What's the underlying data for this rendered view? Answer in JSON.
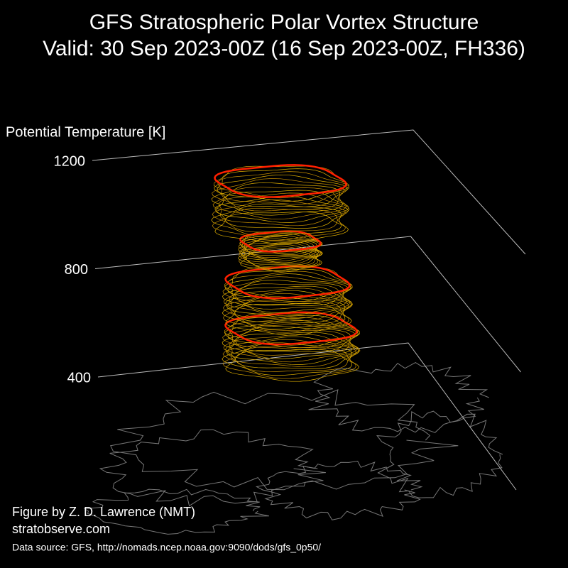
{
  "chart_data": {
    "type": "vortex3d",
    "title": "GFS Stratospheric Polar Vortex Structure",
    "subtitle": "Valid: 30 Sep 2023-00Z  (16 Sep 2023-00Z, FH336)",
    "zlabel": "Potential Temperature [K]",
    "zlim": [
      400,
      1200
    ],
    "zticks": [
      400,
      800,
      1200
    ],
    "credits": [
      "Figure by Z. D. Lawrence (NMT)",
      "stratobserve.com"
    ],
    "source": "Data source: GFS, http://nomads.ncep.noaa.gov:9090/dods/gfs_0p50/"
  }
}
